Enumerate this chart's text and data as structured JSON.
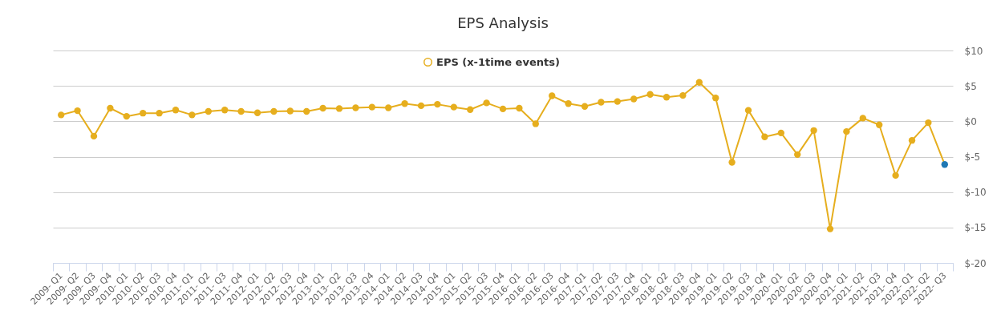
{
  "chart_data": {
    "type": "line",
    "title": "EPS Analysis",
    "categories": [
      "2009- Q1",
      "2009- Q2",
      "2009- Q3",
      "2009- Q4",
      "2010- Q1",
      "2010- Q2",
      "2010- Q3",
      "2010- Q4",
      "2011- Q1",
      "2011- Q2",
      "2011- Q3",
      "2011- Q4",
      "2012- Q1",
      "2012- Q2",
      "2012- Q3",
      "2012- Q4",
      "2013- Q1",
      "2013- Q2",
      "2013- Q3",
      "2013- Q4",
      "2014- Q1",
      "2014- Q2",
      "2014- Q3",
      "2014- Q4",
      "2015- Q1",
      "2015- Q2",
      "2015- Q3",
      "2015- Q4",
      "2016- Q1",
      "2016- Q2",
      "2016- Q3",
      "2016- Q4",
      "2017- Q1",
      "2017- Q2",
      "2017- Q3",
      "2017- Q4",
      "2018- Q1",
      "2018- Q2",
      "2018- Q3",
      "2018- Q4",
      "2019- Q1",
      "2019- Q2",
      "2019- Q3",
      "2019- Q4",
      "2020- Q1",
      "2020- Q2",
      "2020- Q3",
      "2020- Q4",
      "2021- Q1",
      "2021- Q2",
      "2021- Q3",
      "2021- Q4",
      "2022- Q1",
      "2022- Q2",
      "2022- Q3"
    ],
    "series": [
      {
        "name": "EPS (x-1time events)",
        "color": "#e6ae1e",
        "values": [
          0.9,
          1.5,
          -2.1,
          1.85,
          0.7,
          1.15,
          1.15,
          1.6,
          0.9,
          1.4,
          1.6,
          1.4,
          1.2,
          1.4,
          1.45,
          1.4,
          1.85,
          1.8,
          1.9,
          2.0,
          1.9,
          2.5,
          2.2,
          2.4,
          2.0,
          1.65,
          2.6,
          1.75,
          1.85,
          -0.35,
          3.6,
          2.5,
          2.1,
          2.7,
          2.8,
          3.15,
          3.8,
          3.4,
          3.65,
          5.5,
          3.3,
          -5.8,
          1.55,
          -2.2,
          -1.65,
          -4.7,
          -1.3,
          -15.2,
          -1.45,
          0.45,
          -0.5,
          -7.65,
          -2.7,
          -0.2,
          -6.1
        ],
        "colors": [
          "#e6ae1e",
          "#e6ae1e",
          "#e6ae1e",
          "#e6ae1e",
          "#e6ae1e",
          "#e6ae1e",
          "#e6ae1e",
          "#e6ae1e",
          "#e6ae1e",
          "#e6ae1e",
          "#e6ae1e",
          "#e6ae1e",
          "#e6ae1e",
          "#e6ae1e",
          "#e6ae1e",
          "#e6ae1e",
          "#e6ae1e",
          "#e6ae1e",
          "#e6ae1e",
          "#e6ae1e",
          "#e6ae1e",
          "#e6ae1e",
          "#e6ae1e",
          "#e6ae1e",
          "#e6ae1e",
          "#e6ae1e",
          "#e6ae1e",
          "#e6ae1e",
          "#e6ae1e",
          "#e6ae1e",
          "#e6ae1e",
          "#e6ae1e",
          "#e6ae1e",
          "#e6ae1e",
          "#e6ae1e",
          "#e6ae1e",
          "#e6ae1e",
          "#e6ae1e",
          "#e6ae1e",
          "#e6ae1e",
          "#e6ae1e",
          "#e6ae1e",
          "#e6ae1e",
          "#e6ae1e",
          "#e6ae1e",
          "#e6ae1e",
          "#e6ae1e",
          "#e6ae1e",
          "#e6ae1e",
          "#e6ae1e",
          "#e6ae1e",
          "#e6ae1e",
          "#e6ae1e",
          "#e6ae1e",
          "#1f78b4"
        ]
      }
    ],
    "ylim": [
      -20,
      10
    ],
    "yticks": [
      {
        "value": 10,
        "label": "$10"
      },
      {
        "value": 5,
        "label": "$5"
      },
      {
        "value": 0,
        "label": "$0"
      },
      {
        "value": -5,
        "label": "$-5"
      },
      {
        "value": -10,
        "label": "$-10"
      },
      {
        "value": -15,
        "label": "$-15"
      },
      {
        "value": -20,
        "label": "$-20"
      }
    ],
    "grid": "y",
    "legend": "top",
    "marker": "circle",
    "line_style": "solid"
  }
}
